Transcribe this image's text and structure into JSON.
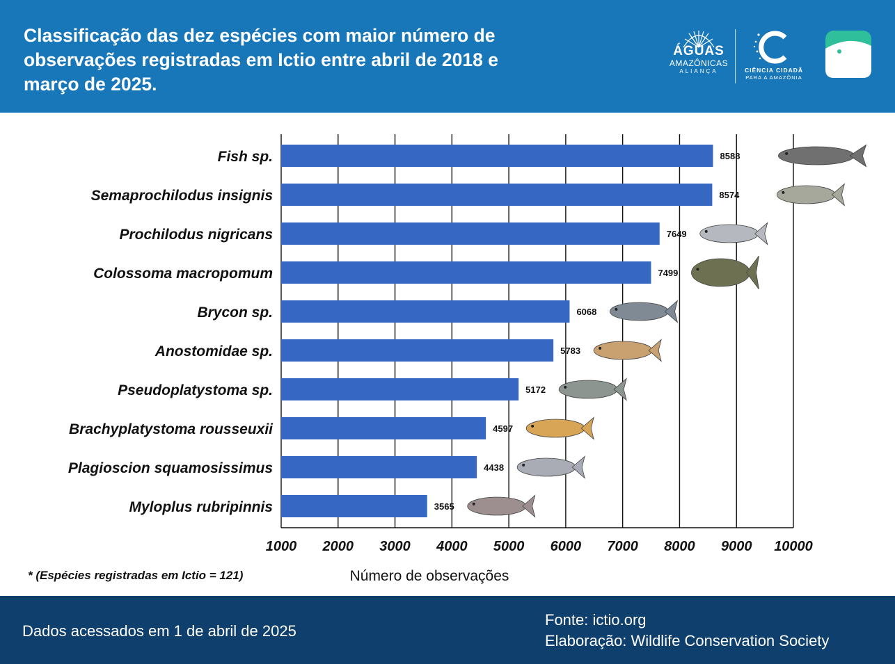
{
  "header": {
    "title": "Classificação das dez espécies com maior número de observações registradas em Ictio entre abril de 2018 e março de 2025.",
    "logos": {
      "aguas_line1": "ÁGUAS",
      "aguas_line2": "AMAZÔNICAS",
      "aguas_line3": "ALIANÇA",
      "ciencia_line1": "CIÊNCIA CIDADÃ",
      "ciencia_line2": "PARA A AMAZÔNIA"
    }
  },
  "chart_data": {
    "type": "bar",
    "orientation": "horizontal",
    "categories": [
      "Fish sp.",
      "Semaprochilodus insignis",
      "Prochilodus nigricans",
      "Colossoma macropomum",
      "Brycon sp.",
      "Anostomidae sp.",
      "Pseudoplatystoma sp.",
      "Brachyplatystoma rousseuxii",
      "Plagioscion squamosissimus",
      "Myloplus rubripinnis"
    ],
    "values": [
      8588,
      8574,
      7649,
      7499,
      6068,
      5783,
      5172,
      4597,
      4438,
      3565
    ],
    "value_labels": [
      "8588",
      "8574",
      "7649",
      "7499",
      "6068",
      "5783",
      "5172",
      "4597",
      "4438",
      "3565"
    ],
    "xlabel": "Número de observações",
    "xlim": [
      1000,
      10000
    ],
    "xticks": [
      "1000",
      "2000",
      "3000",
      "4000",
      "5000",
      "6000",
      "7000",
      "8000",
      "9000",
      "10000"
    ],
    "grid": "vertical",
    "bar_color": "#3567c3"
  },
  "footnote": "* (Espécies registradas em Ictio = 121)",
  "footer": {
    "access": "Dados acessados em 1 de abril de 2025",
    "source": "Fonte: ictio.org",
    "credit": "Elaboração: Wildlife Conservation Society"
  },
  "colors": {
    "header_bg": "#1877b9",
    "footer_bg": "#0f3f6c",
    "bar": "#3567c3",
    "app_icon": "#2fbf9a"
  },
  "icons": [
    "aguas-amazonicas-logo",
    "ciencia-cidada-logo",
    "ictio-app-icon",
    "fish-illustration"
  ]
}
